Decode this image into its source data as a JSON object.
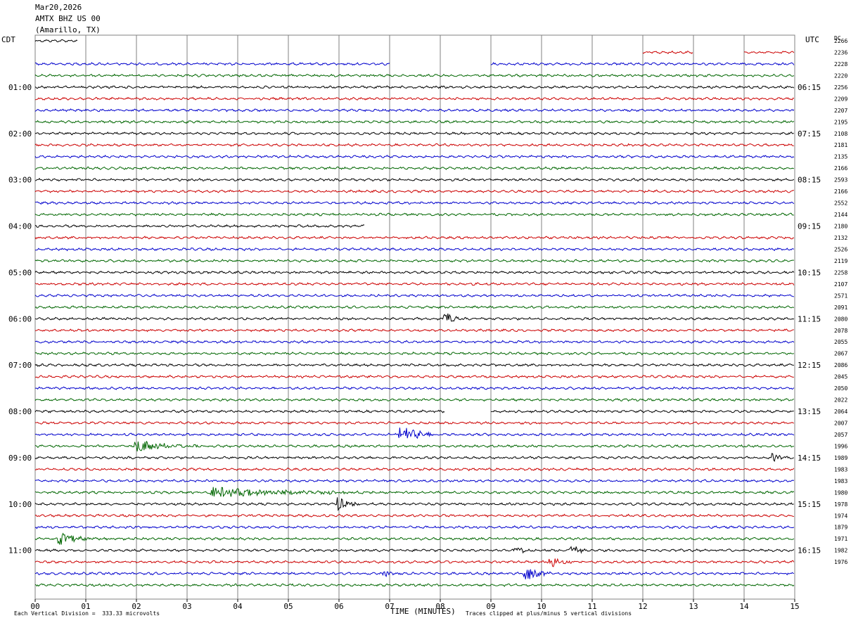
{
  "header": {
    "date": "Mar20,2026",
    "station": "AMTX BHZ US 00",
    "location": "(Amarillo, TX)"
  },
  "labels": {
    "left_zone": "CDT",
    "right_zone": "UTC",
    "dc": "DC",
    "xlabel": "TIME (MINUTES)",
    "scale_note": "Each Vertical Division =  333.33 microvolts",
    "clip_note": "Traces clipped at plus/minus 5 vertical divisions"
  },
  "colors": {
    "cycle": [
      "#000000",
      "#cc0000",
      "#0000cc",
      "#006600"
    ],
    "grid": "#808080"
  },
  "chart_data": {
    "type": "line",
    "title": "AMTX BHZ US 00 (Amarillo, TX) Mar20,2026",
    "xlabel": "TIME (MINUTES)",
    "xlim": [
      0,
      15
    ],
    "x_ticks": [
      "00",
      "01",
      "02",
      "03",
      "04",
      "05",
      "06",
      "07",
      "08",
      "09",
      "10",
      "11",
      "12",
      "13",
      "14",
      "15"
    ],
    "trace_interval_minutes": 15,
    "trace_count": 48,
    "first_trace_start_cdt": "00:15",
    "left_hour_labels": [
      "01:00",
      "02:00",
      "03:00",
      "04:00",
      "05:00",
      "06:00",
      "07:00",
      "08:00",
      "09:00",
      "10:00",
      "11:00"
    ],
    "right_hour_labels": [
      "06:15",
      "07:15",
      "08:15",
      "09:15",
      "10:15",
      "11:15",
      "12:15",
      "13:15",
      "14:15",
      "15:15",
      "16:15"
    ],
    "dc_offsets": [
      "2266",
      "2236",
      "2228",
      "2220",
      "2256",
      "2209",
      "2207",
      "2195",
      "2108",
      "2181",
      "2135",
      "2166",
      "2593",
      "2166",
      "2552",
      "2144",
      "2180",
      "2132",
      "2526",
      "2119",
      "2258",
      "2107",
      "2571",
      "2091",
      "2080",
      "2078",
      "2055",
      "2067",
      "2086",
      "2045",
      "2050",
      "2022",
      "2064",
      "2007",
      "2057",
      "1996",
      "1989",
      "1983",
      "1983",
      "1980",
      "1978",
      "1974",
      "1879",
      "1971",
      "1982",
      "1976",
      "",
      ""
    ],
    "gaps": [
      {
        "trace": 0,
        "from_min": 0.85,
        "to_min": 15
      },
      {
        "trace": 1,
        "from_min": 0,
        "to_min": 12.0
      },
      {
        "trace": 1,
        "from_min": 13.0,
        "to_min": 14.0
      },
      {
        "trace": 2,
        "from_min": 7.0,
        "to_min": 9.0
      },
      {
        "trace": 16,
        "from_min": 6.5,
        "to_min": 15
      },
      {
        "trace": 32,
        "from_min": 8.1,
        "to_min": 9.0
      }
    ],
    "events": [
      {
        "trace": 24,
        "minute": 8.1,
        "amplitude_div": 1.4,
        "duration_min": 0.3
      },
      {
        "trace": 34,
        "minute": 7.2,
        "amplitude_div": 1.6,
        "duration_min": 0.7
      },
      {
        "trace": 35,
        "minute": 2.0,
        "amplitude_div": 1.2,
        "duration_min": 1.2
      },
      {
        "trace": 36,
        "minute": 14.6,
        "amplitude_div": 0.6,
        "duration_min": 0.3
      },
      {
        "trace": 39,
        "minute": 3.5,
        "amplitude_div": 0.9,
        "duration_min": 3.2
      },
      {
        "trace": 40,
        "minute": 6.0,
        "amplitude_div": 1.2,
        "duration_min": 0.5
      },
      {
        "trace": 43,
        "minute": 0.5,
        "amplitude_div": 1.0,
        "duration_min": 0.8
      },
      {
        "trace": 44,
        "minute": 9.5,
        "amplitude_div": 0.8,
        "duration_min": 0.3
      },
      {
        "trace": 44,
        "minute": 10.6,
        "amplitude_div": 0.8,
        "duration_min": 0.4
      },
      {
        "trace": 45,
        "minute": 10.2,
        "amplitude_div": 1.0,
        "duration_min": 0.5
      },
      {
        "trace": 46,
        "minute": 9.7,
        "amplitude_div": 1.3,
        "duration_min": 0.5
      },
      {
        "trace": 46,
        "minute": 6.9,
        "amplitude_div": 0.6,
        "duration_min": 0.3
      }
    ]
  }
}
